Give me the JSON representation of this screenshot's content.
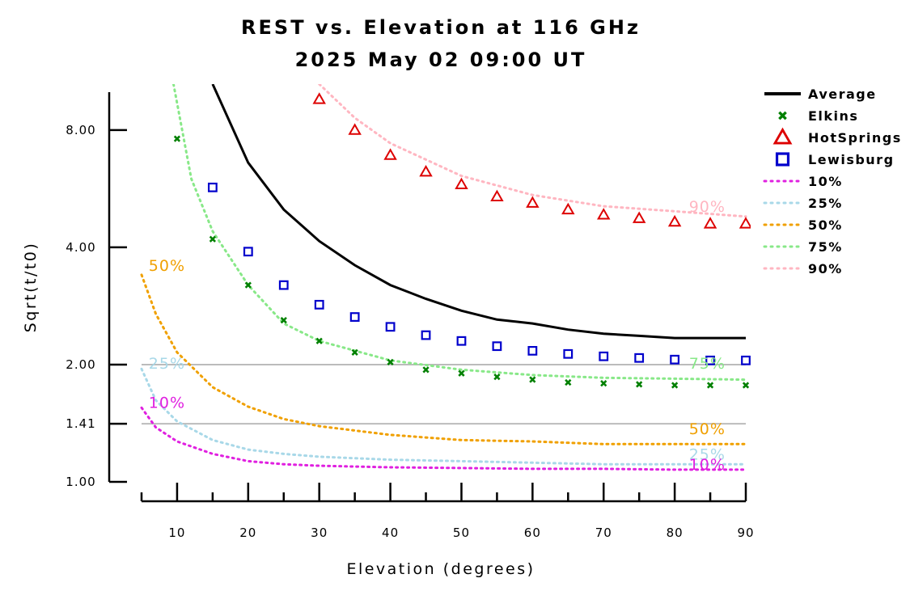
{
  "chart_data": {
    "type": "scatter",
    "title": "REST vs. Elevation at 116 GHz",
    "subtitle": "2025 May 02 09:00 UT",
    "xlabel": "Elevation (degrees)",
    "ylabel": "Sqrt(t/t0)",
    "xlim": [
      5,
      90
    ],
    "ylim": [
      1.0,
      10.5
    ],
    "yscale": "log",
    "x_ticks": [
      10,
      20,
      30,
      40,
      50,
      60,
      70,
      80,
      90
    ],
    "y_ticks": [
      1.0,
      1.41,
      2.0,
      4.0,
      8.0
    ],
    "y_tick_labels": [
      "1.00",
      "1.41",
      "2.00",
      "4.00",
      "8.00"
    ],
    "reference_lines": [
      1.41,
      2.0
    ],
    "legend_position": "right",
    "colors": {
      "Average": "#000000",
      "Elkins": "#008000",
      "HotSprings": "#dd0000",
      "Lewisburg": "#0000cc",
      "10%": "#e020e0",
      "25%": "#a8d8e8",
      "50%": "#f0a000",
      "75%": "#88e888",
      "90%": "#ffb6c1",
      "reference": "#bbbbbb"
    },
    "series": [
      {
        "name": "Average",
        "style": "line",
        "x": [
          15,
          20,
          25,
          30,
          35,
          40,
          45,
          50,
          55,
          60,
          65,
          70,
          75,
          80,
          85,
          90
        ],
        "y": [
          10.5,
          6.6,
          5.0,
          4.15,
          3.6,
          3.2,
          2.95,
          2.75,
          2.61,
          2.55,
          2.46,
          2.4,
          2.37,
          2.34,
          2.34,
          2.34
        ]
      },
      {
        "name": "Elkins",
        "style": "x",
        "x": [
          10,
          15,
          20,
          25,
          30,
          35,
          40,
          45,
          50,
          55,
          60,
          65,
          70,
          75,
          80,
          85,
          90
        ],
        "y": [
          7.6,
          4.2,
          3.2,
          2.6,
          2.3,
          2.15,
          2.03,
          1.94,
          1.9,
          1.86,
          1.83,
          1.8,
          1.79,
          1.78,
          1.77,
          1.77,
          1.77
        ]
      },
      {
        "name": "HotSprings",
        "style": "triangle",
        "x": [
          30,
          35,
          40,
          45,
          50,
          55,
          60,
          65,
          70,
          75,
          80,
          85,
          90
        ],
        "y": [
          9.6,
          8.0,
          6.9,
          6.25,
          5.8,
          5.4,
          5.2,
          5.0,
          4.85,
          4.75,
          4.65,
          4.6,
          4.6
        ]
      },
      {
        "name": "Lewisburg",
        "style": "square",
        "x": [
          15,
          20,
          25,
          30,
          35,
          40,
          45,
          50,
          55,
          60,
          65,
          70,
          75,
          80,
          85,
          90
        ],
        "y": [
          5.7,
          3.9,
          3.2,
          2.85,
          2.65,
          2.5,
          2.38,
          2.3,
          2.23,
          2.17,
          2.13,
          2.1,
          2.08,
          2.06,
          2.05,
          2.05
        ]
      },
      {
        "name": "10%",
        "style": "dotted",
        "x": [
          5,
          7,
          10,
          15,
          20,
          25,
          30,
          40,
          50,
          60,
          70,
          80,
          90
        ],
        "y": [
          1.55,
          1.38,
          1.27,
          1.18,
          1.13,
          1.11,
          1.1,
          1.09,
          1.085,
          1.08,
          1.08,
          1.075,
          1.075
        ]
      },
      {
        "name": "25%",
        "style": "dotted",
        "x": [
          5,
          7,
          10,
          15,
          20,
          25,
          30,
          40,
          50,
          60,
          70,
          80,
          90
        ],
        "y": [
          1.95,
          1.62,
          1.43,
          1.28,
          1.21,
          1.18,
          1.16,
          1.14,
          1.13,
          1.12,
          1.11,
          1.11,
          1.11
        ]
      },
      {
        "name": "50%",
        "style": "dotted",
        "x": [
          5,
          7,
          10,
          15,
          20,
          25,
          30,
          40,
          50,
          60,
          70,
          80,
          90
        ],
        "y": [
          3.4,
          2.7,
          2.15,
          1.75,
          1.56,
          1.45,
          1.39,
          1.32,
          1.28,
          1.27,
          1.25,
          1.25,
          1.25
        ]
      },
      {
        "name": "75%",
        "style": "dotted",
        "x": [
          9.5,
          12,
          15,
          20,
          25,
          30,
          40,
          50,
          60,
          70,
          80,
          90
        ],
        "y": [
          10.5,
          6.0,
          4.4,
          3.2,
          2.55,
          2.3,
          2.05,
          1.94,
          1.88,
          1.85,
          1.84,
          1.83
        ]
      },
      {
        "name": "90%",
        "style": "dotted",
        "x": [
          30,
          35,
          40,
          50,
          60,
          70,
          80,
          90
        ],
        "y": [
          10.5,
          8.6,
          7.4,
          6.1,
          5.45,
          5.1,
          4.95,
          4.8
        ]
      }
    ],
    "curve_labels": [
      {
        "text": "50%",
        "series": "50%",
        "x": 6,
        "y": 3.6
      },
      {
        "text": "25%",
        "series": "25%",
        "x": 6,
        "y": 2.02
      },
      {
        "text": "10%",
        "series": "10%",
        "x": 6,
        "y": 1.6
      },
      {
        "text": "90%",
        "series": "90%",
        "x": 82,
        "y": 5.1
      },
      {
        "text": "75%",
        "series": "75%",
        "x": 82,
        "y": 2.02
      },
      {
        "text": "50%",
        "series": "50%",
        "x": 82,
        "y": 1.37
      },
      {
        "text": "25%",
        "series": "25%",
        "x": 82,
        "y": 1.18
      },
      {
        "text": "10%",
        "series": "10%",
        "x": 82,
        "y": 1.11
      }
    ]
  }
}
